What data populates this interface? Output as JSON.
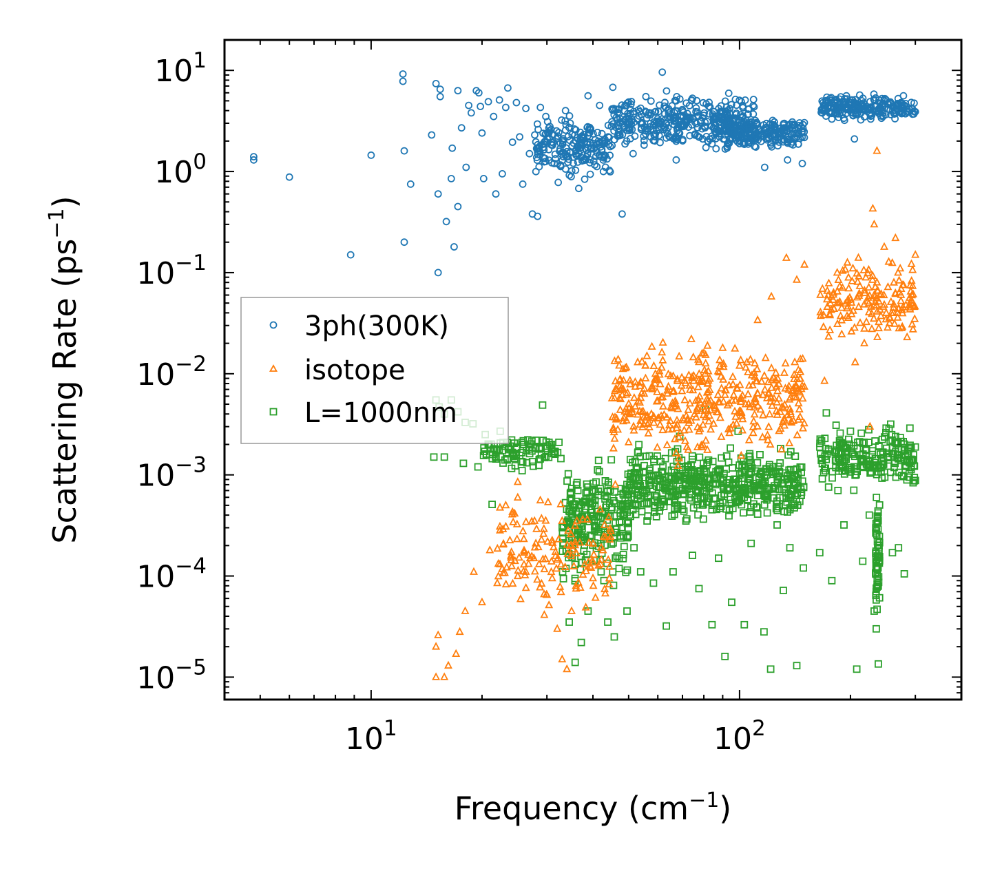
{
  "chart_data": {
    "type": "scatter",
    "xscale": "log",
    "yscale": "log",
    "xlabel": "Frequency (cm",
    "xlabel_sup": "−1",
    "xlabel_end": ")",
    "ylabel": "Scattering Rate (ps",
    "ylabel_sup": "−1",
    "ylabel_end": ")",
    "xlim": [
      4,
      400
    ],
    "ylim": [
      6e-06,
      20
    ],
    "x_ticks": [
      {
        "base": "10",
        "exp": "1",
        "value": 10
      },
      {
        "base": "10",
        "exp": "2",
        "value": 100
      }
    ],
    "y_ticks": [
      {
        "base": "10",
        "exp": "1",
        "value": 10
      },
      {
        "base": "10",
        "exp": "0",
        "value": 1
      },
      {
        "base": "10",
        "exp": "−1",
        "value": 0.1
      },
      {
        "base": "10",
        "exp": "−2",
        "value": 0.01
      },
      {
        "base": "10",
        "exp": "−3",
        "value": 0.001
      },
      {
        "base": "10",
        "exp": "−4",
        "value": 0.0001
      },
      {
        "base": "10",
        "exp": "−5",
        "value": 1e-05
      }
    ],
    "legend_position": "center-left",
    "series": [
      {
        "name": "3ph(300K)",
        "marker": "circle",
        "color": "#1f77b4",
        "points": [
          [
            4.8,
            1.4
          ],
          [
            4.8,
            1.3
          ],
          [
            6,
            0.88
          ],
          [
            8.8,
            0.15
          ],
          [
            10,
            1.45
          ],
          [
            12.2,
            9.2
          ],
          [
            12.2,
            7.8
          ],
          [
            12.3,
            1.6
          ],
          [
            12.3,
            0.2
          ],
          [
            12.8,
            0.75
          ],
          [
            14.6,
            2.3
          ],
          [
            15,
            7.4
          ],
          [
            15.2,
            0.6
          ],
          [
            15.2,
            0.1
          ],
          [
            15.4,
            6.5
          ],
          [
            15.4,
            5.5
          ],
          [
            16,
            0.32
          ],
          [
            16.5,
            0.85
          ],
          [
            16.6,
            1.7
          ],
          [
            16.8,
            0.18
          ],
          [
            17.2,
            6.3
          ],
          [
            17.2,
            0.45
          ],
          [
            17.6,
            2.7
          ],
          [
            18.1,
            1.1
          ],
          [
            18.4,
            4.5
          ],
          [
            18.7,
            3.8
          ],
          [
            19.3,
            6.3
          ],
          [
            19.6,
            6.0
          ],
          [
            19.8,
            4.4
          ],
          [
            20,
            2.4
          ],
          [
            20.2,
            0.85
          ],
          [
            20.8,
            4.9
          ],
          [
            21.5,
            3.5
          ],
          [
            21.8,
            0.6
          ],
          [
            22.3,
            5.1
          ],
          [
            22.7,
            0.95
          ],
          [
            23.2,
            4.3
          ],
          [
            23.5,
            6.7
          ],
          [
            24.2,
            1.95
          ],
          [
            24.8,
            4.8
          ],
          [
            25.3,
            2.2
          ],
          [
            25.8,
            0.75
          ],
          [
            26.3,
            4.2
          ],
          [
            26.9,
            1.5
          ],
          [
            27.4,
            0.38
          ],
          [
            27.8,
            2.3
          ],
          [
            28.3,
            0.36
          ],
          [
            28.8,
            4.3
          ],
          [
            29.8,
            3.5
          ],
          [
            30.8,
            2.6
          ],
          [
            31.4,
            1.2
          ],
          [
            32.2,
            0.78
          ],
          [
            33.1,
            1.55
          ],
          [
            33.7,
            4.0
          ],
          [
            34.7,
            3.0
          ],
          [
            36,
            1.45
          ],
          [
            36.6,
            0.68
          ],
          [
            37.7,
            2.2
          ],
          [
            38.8,
            5.6
          ],
          [
            40,
            1.9
          ],
          [
            41.7,
            4.5
          ],
          [
            42.7,
            1.0
          ],
          [
            44,
            2.2
          ],
          [
            45.3,
            6.8
          ],
          [
            46.7,
            3.3
          ],
          [
            48,
            0.38
          ],
          [
            49.4,
            2.0
          ],
          [
            51.4,
            1.5
          ],
          [
            53.5,
            3.9
          ],
          [
            55.7,
            5.5
          ],
          [
            58.6,
            2.3
          ],
          [
            61.7,
            9.6
          ],
          [
            64.2,
            3.8
          ],
          [
            67.3,
            1.3
          ],
          [
            70.8,
            2.8
          ],
          [
            74.5,
            5.3
          ],
          [
            78.4,
            3.1
          ],
          [
            82.5,
            4.4
          ],
          [
            86.7,
            2.6
          ],
          [
            91.3,
            3.3
          ],
          [
            96,
            2.3
          ],
          [
            101,
            2.9
          ],
          [
            106,
            2.6
          ],
          [
            111.5,
            3.0
          ],
          [
            117,
            1.1
          ],
          [
            123,
            3.2
          ],
          [
            129,
            2.4
          ],
          [
            135,
            1.3
          ],
          [
            141,
            2.9
          ],
          [
            148,
            1.2
          ],
          [
            170,
            4.0
          ],
          [
            178,
            3.3
          ],
          [
            186,
            4.5
          ],
          [
            195,
            5.6
          ],
          [
            205,
            2.1
          ],
          [
            216,
            4.2
          ],
          [
            227,
            3.3
          ],
          [
            238,
            4.0
          ],
          [
            250,
            5.1
          ],
          [
            263,
            3.7
          ],
          [
            276,
            4.5
          ],
          [
            289,
            4.1
          ],
          [
            300,
            3.9
          ]
        ],
        "dense_bands": [
          {
            "x_range": [
              28,
              45
            ],
            "y_range": [
              0.7,
              4.5
            ],
            "count": 200
          },
          {
            "x_range": [
              45,
              110
            ],
            "y_range": [
              1.4,
              6.8
            ],
            "count": 380
          },
          {
            "x_range": [
              90,
              150
            ],
            "y_range": [
              1.6,
              3.6
            ],
            "count": 200
          },
          {
            "x_range": [
              165,
              300
            ],
            "y_range": [
              3.0,
              6.2
            ],
            "count": 220
          }
        ]
      },
      {
        "name": "isotope",
        "marker": "triangle",
        "color": "#ff7f0e",
        "points": [
          [
            15,
            2e-05
          ],
          [
            15,
            1e-05
          ],
          [
            15.2,
            2.6e-05
          ],
          [
            15.8,
            1e-05
          ],
          [
            16.2,
            1.3e-05
          ],
          [
            17,
            1.7e-05
          ],
          [
            17.4,
            2.8e-05
          ],
          [
            18,
            4.5e-05
          ],
          [
            19,
            0.00011
          ],
          [
            20,
            5.5e-05
          ],
          [
            21,
            0.00018
          ],
          [
            22,
            8.5e-05
          ],
          [
            22.8,
            0.00029
          ],
          [
            23.2,
            0.0005
          ],
          [
            24.2,
            0.00043
          ],
          [
            25,
            0.00085
          ],
          [
            26,
            0.00013
          ],
          [
            27,
            0.00015
          ],
          [
            28,
            0.00021
          ],
          [
            29,
            0.00037
          ],
          [
            30,
            6.5e-05
          ],
          [
            31,
            9.5e-05
          ],
          [
            32,
            3e-05
          ],
          [
            33,
            1.5e-05
          ],
          [
            34,
            1.2e-05
          ],
          [
            35,
            4.5e-05
          ],
          [
            36,
            7.5e-05
          ],
          [
            38,
            0.00013
          ],
          [
            40,
            9.5e-05
          ],
          [
            43,
            0.00032
          ],
          [
            46,
            0.0008
          ],
          [
            50,
            0.0021
          ],
          [
            55,
            0.0037
          ],
          [
            60,
            0.0054
          ],
          [
            66,
            0.0066
          ],
          [
            74,
            0.022
          ],
          [
            80,
            0.016
          ],
          [
            90,
            0.018
          ],
          [
            100,
            0.012
          ],
          [
            112,
            0.034
          ],
          [
            122,
            0.058
          ],
          [
            134,
            0.14
          ],
          [
            143,
            0.085
          ],
          [
            150,
            0.12
          ],
          [
            170,
            0.0085
          ],
          [
            176,
            0.027
          ],
          [
            186,
            0.05
          ],
          [
            196,
            0.052
          ],
          [
            206,
            0.013
          ],
          [
            218,
            0.02
          ],
          [
            226,
            0.003
          ],
          [
            230,
            0.43
          ],
          [
            232,
            0.3
          ],
          [
            236,
            1.6
          ],
          [
            236,
            0.08
          ],
          [
            240,
            0.06
          ],
          [
            247,
            0.18
          ],
          [
            255,
            0.036
          ],
          [
            265,
            0.22
          ],
          [
            273,
            0.11
          ],
          [
            285,
            0.023
          ],
          [
            292,
            0.05
          ],
          [
            300,
            0.15
          ]
        ],
        "dense_bands": [
          {
            "x_range": [
              22,
              45
            ],
            "y_range": [
              3.5e-05,
              0.0008
            ],
            "count": 140
          },
          {
            "x_range": [
              45,
              150
            ],
            "y_range": [
              0.0011,
              0.028
            ],
            "count": 420
          },
          {
            "x_range": [
              165,
              300
            ],
            "y_range": [
              0.018,
              0.16
            ],
            "count": 160
          }
        ]
      },
      {
        "name": "L=1000nm",
        "marker": "square",
        "color": "#2ca02c",
        "points": [
          [
            15,
            0.0055
          ],
          [
            15.3,
            0.0047
          ],
          [
            15.8,
            0.004
          ],
          [
            16.5,
            0.0055
          ],
          [
            17.2,
            0.0042
          ],
          [
            18,
            0.0033
          ],
          [
            18.9,
            0.0032
          ],
          [
            14.8,
            0.0015
          ],
          [
            15.8,
            0.0015
          ],
          [
            17.8,
            0.0013
          ],
          [
            19.5,
            0.0012
          ],
          [
            20.4,
            0.0025
          ],
          [
            21.3,
            0.00051
          ],
          [
            22.4,
            0.0027
          ],
          [
            23.4,
            0.0021
          ],
          [
            24.4,
            0.0016
          ],
          [
            25.7,
            0.0011
          ],
          [
            26.8,
            0.0018
          ],
          [
            28,
            0.0022
          ],
          [
            29.2,
            0.0049
          ],
          [
            30.4,
            0.0021
          ],
          [
            31.6,
            0.0017
          ],
          [
            33.1,
            0.00011
          ],
          [
            34.5,
            3.5e-05
          ],
          [
            35.8,
            1.4e-05
          ],
          [
            37.2,
            2.2e-05
          ],
          [
            38.8,
            4.5e-05
          ],
          [
            40.4,
            0.00028
          ],
          [
            42.1,
            0.00011
          ],
          [
            43.9,
            3.5e-05
          ],
          [
            45.7,
            2.5e-05
          ],
          [
            47.6,
            0.00039
          ],
          [
            49.5,
            4.5e-05
          ],
          [
            51.7,
            0.00019
          ],
          [
            53.9,
            0.00011
          ],
          [
            56.1,
            0.00035
          ],
          [
            58.4,
            8.5e-05
          ],
          [
            60.8,
            0.00048
          ],
          [
            63.3,
            3.2e-05
          ],
          [
            66,
            0.00011
          ],
          [
            68.8,
            0.0024
          ],
          [
            71.5,
            0.00035
          ],
          [
            74.5,
            0.00016
          ],
          [
            77.6,
            7.5e-05
          ],
          [
            80.8,
            0.0044
          ],
          [
            84.2,
            3.3e-05
          ],
          [
            87.7,
            0.00015
          ],
          [
            91.3,
            1.6e-05
          ],
          [
            95.2,
            5.5e-05
          ],
          [
            99.1,
            0.0027
          ],
          [
            103,
            3.3e-05
          ],
          [
            107.5,
            0.00021
          ],
          [
            112,
            0.00041
          ],
          [
            116.5,
            2.8e-05
          ],
          [
            121.5,
            1.2e-05
          ],
          [
            126.5,
            0.00032
          ],
          [
            131.5,
            7.2e-05
          ],
          [
            137,
            0.00019
          ],
          [
            143,
            1.3e-05
          ],
          [
            149,
            0.00012
          ],
          [
            165,
            0.00017
          ],
          [
            172,
            0.0041
          ],
          [
            178,
            9e-05
          ],
          [
            185,
            0.0007
          ],
          [
            192,
            0.00032
          ],
          [
            200,
            0.0027
          ],
          [
            208,
            1.2e-05
          ],
          [
            216,
            0.00014
          ],
          [
            225,
            0.0004
          ],
          [
            232,
            4.5e-05
          ],
          [
            235,
            3e-05
          ],
          [
            238,
            1.35e-05
          ],
          [
            241,
            0.0012
          ],
          [
            250,
            0.0029
          ],
          [
            260,
            0.00017
          ],
          [
            270,
            0.00019
          ],
          [
            280,
            0.000105
          ],
          [
            290,
            0.0029
          ],
          [
            300,
            0.00088
          ]
        ],
        "dense_bands": [
          {
            "x_range": [
              20,
              33
            ],
            "y_range": [
              0.0011,
              0.0026
            ],
            "count": 90
          },
          {
            "x_range": [
              33,
              50
            ],
            "y_range": [
              6.5e-05,
              0.0018
            ],
            "count": 240
          },
          {
            "x_range": [
              50,
              150
            ],
            "y_range": [
              0.0003,
              0.0022
            ],
            "count": 520
          },
          {
            "x_range": [
              165,
              300
            ],
            "y_range": [
              0.0006,
              0.0035
            ],
            "count": 220
          },
          {
            "x_range": [
              234,
              240
            ],
            "y_range": [
              3e-05,
              0.0009
            ],
            "count": 60
          }
        ]
      }
    ]
  }
}
